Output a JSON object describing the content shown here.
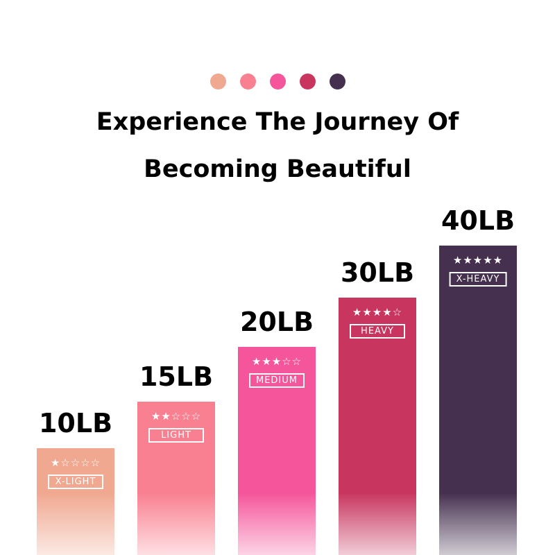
{
  "header": {
    "dot_colors": [
      "#f0a890",
      "#f98090",
      "#f5559a",
      "#c8365f",
      "#45304f"
    ],
    "title_line1": "Experience The Journey Of",
    "title_line2": "Becoming Beautiful"
  },
  "chart_data": {
    "type": "bar",
    "categories": [
      "X-LIGHT",
      "LIGHT",
      "MEDIUM",
      "HEAVY",
      "X-HEAVY"
    ],
    "values": [
      10,
      15,
      20,
      30,
      40
    ],
    "value_labels": [
      "10LB",
      "15LB",
      "20LB",
      "30LB",
      "40LB"
    ],
    "stars": [
      1,
      2,
      3,
      4,
      5
    ],
    "colors": [
      "#f0a890",
      "#f98090",
      "#f5559a",
      "#c8365f",
      "#45304f"
    ],
    "unit": "LB"
  }
}
